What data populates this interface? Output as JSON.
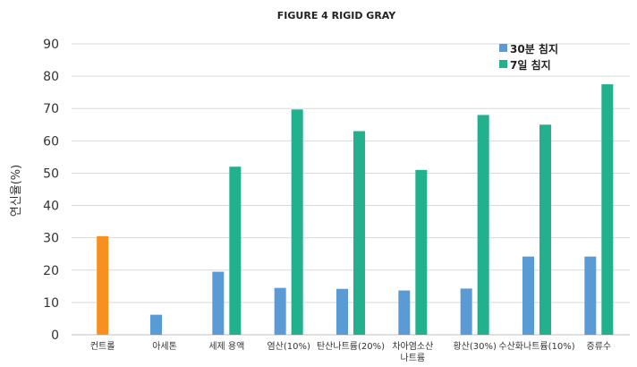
{
  "chart_data": {
    "type": "bar",
    "title": "FIGURE 4 RIGID GRAY",
    "xlabel": "",
    "ylabel": "연신율(%)",
    "ylim": [
      0,
      90
    ],
    "yticks": [
      0,
      10,
      20,
      30,
      40,
      50,
      60,
      70,
      80,
      90
    ],
    "grid": true,
    "legend_position": "top-right",
    "categories": [
      [
        "컨트롤"
      ],
      [
        "아세톤"
      ],
      [
        "세제 용액"
      ],
      [
        "염산(10%)"
      ],
      [
        "탄산나트륨(20%)"
      ],
      [
        "차아염소산",
        "나트륨"
      ],
      [
        "황산(30%)"
      ],
      [
        "수산화나트륨(10%)"
      ],
      [
        "증류수"
      ]
    ],
    "control": {
      "category_index": 0,
      "value": 30.5,
      "color": "#F7901E"
    },
    "series": [
      {
        "name": "30분 침지",
        "color": "#5B9BD5",
        "values": [
          null,
          6.2,
          19.5,
          14.5,
          14.2,
          13.7,
          14.3,
          24.2,
          24.2
        ]
      },
      {
        "name": "7일 침지",
        "color": "#23B08D",
        "values": [
          null,
          null,
          52.0,
          69.7,
          63.0,
          51.0,
          68.0,
          65.0,
          77.5
        ]
      }
    ]
  }
}
